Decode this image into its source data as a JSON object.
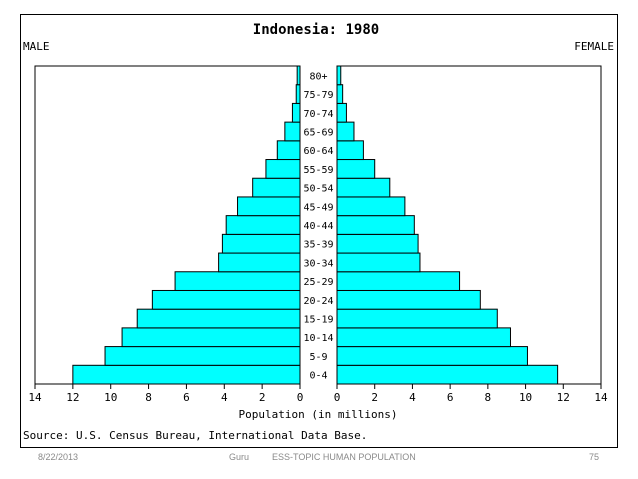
{
  "chart_data": {
    "type": "bar",
    "subtype": "population-pyramid",
    "title": "Indonesia: 1980",
    "left_label": "MALE",
    "right_label": "FEMALE",
    "xlabel": "Population (in millions)",
    "source": "Source: U.S. Census Bureau, International Data Base.",
    "categories": [
      "0-4",
      "5-9",
      "10-14",
      "15-19",
      "20-24",
      "25-29",
      "30-34",
      "35-39",
      "40-44",
      "45-49",
      "50-54",
      "55-59",
      "60-64",
      "65-69",
      "70-74",
      "75-79",
      "80+"
    ],
    "series": [
      {
        "name": "MALE",
        "values": [
          12.0,
          10.3,
          9.4,
          8.6,
          7.8,
          6.6,
          4.3,
          4.1,
          3.9,
          3.3,
          2.5,
          1.8,
          1.2,
          0.8,
          0.4,
          0.2,
          0.15
        ]
      },
      {
        "name": "FEMALE",
        "values": [
          11.7,
          10.1,
          9.2,
          8.5,
          7.6,
          6.5,
          4.4,
          4.3,
          4.1,
          3.6,
          2.8,
          2.0,
          1.4,
          0.9,
          0.5,
          0.3,
          0.2
        ]
      }
    ],
    "xlim": [
      0,
      14
    ],
    "xticks": [
      14,
      12,
      10,
      8,
      6,
      4,
      2,
      0
    ],
    "xticks_right": [
      0,
      2,
      4,
      6,
      8,
      10,
      12,
      14
    ],
    "bar_color": "#00FFFF"
  },
  "footer": {
    "date": "8/22/2013",
    "author": "Guru",
    "topic": "ESS-TOPIC HUMAN POPULATION",
    "page": "75"
  }
}
